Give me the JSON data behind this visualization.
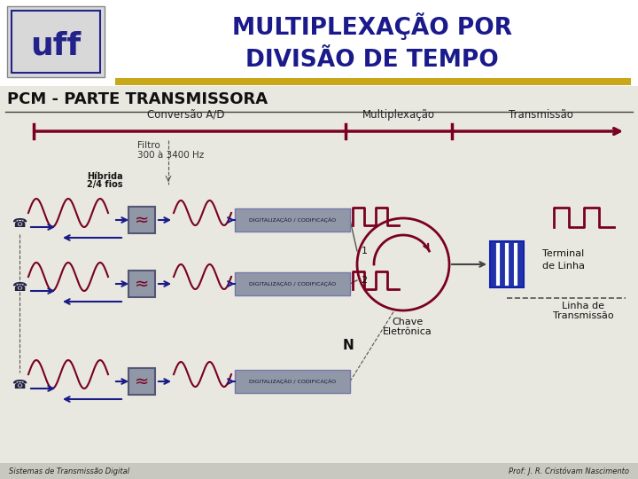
{
  "title_line1": "MULTIPLEXAÇÃO POR",
  "title_line2": "DIVISÃO DE TEMPO",
  "subtitle": "PCM - PARTE TRANSMISSORA",
  "bg_color": "#f0f0ec",
  "header_bg": "#ffffff",
  "main_bg": "#e8e8e0",
  "title_color": "#1a1a8c",
  "dark_red": "#7a0020",
  "blue_arrow_color": "#1a1a88",
  "gray_box": "#9098a8",
  "footer_bg": "#c8c8c0",
  "footer_text_left": "Sistemas de Transmissão Digital",
  "footer_text_right": "Prof: J. R. Cristóvam Nascimento",
  "label_conversao": "Conversão A/D",
  "label_multiplex": "Multiplexação",
  "label_transmissao": "Transmissão",
  "label_filtro_line1": "Filtro",
  "label_filtro_line2": "300 à 3400 Hz",
  "label_hibrida_line1": "Híbrida",
  "label_hibrida_line2": "2/4 fios",
  "label_digital": "DIGITALIZAÇÃO / CODIFICAÇÃO",
  "label_terminal_line1": "Terminal",
  "label_terminal_line2": "de Linha",
  "label_chave_line1": "Chave",
  "label_chave_line2": "Eletrônica",
  "label_linha_line1": "Linha de",
  "label_linha_line2": "Transmissão",
  "label_N": "N",
  "gold_color": "#c8a818"
}
